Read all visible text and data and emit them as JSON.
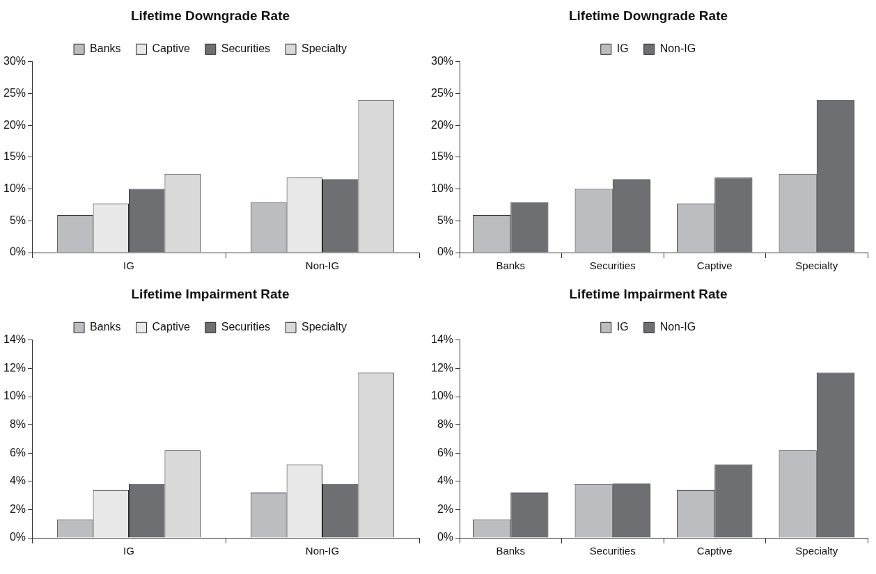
{
  "chart_data": [
    {
      "type": "bar",
      "title": "Lifetime Downgrade Rate",
      "categories": [
        "IG",
        "Non-IG"
      ],
      "legend": "top",
      "ylim": [
        0,
        30
      ],
      "yticks": [
        {
          "value": 0,
          "label": "0%"
        },
        {
          "value": 5,
          "label": "5%"
        },
        {
          "value": 10,
          "label": "10%"
        },
        {
          "value": 15,
          "label": "15%"
        },
        {
          "value": 20,
          "label": "20%"
        },
        {
          "value": 25,
          "label": "25%"
        },
        {
          "value": 30,
          "label": "30%"
        }
      ],
      "series": [
        {
          "name": "Banks",
          "color": "#bcbdc1",
          "values": [
            5.9,
            7.9
          ]
        },
        {
          "name": "Captive",
          "color": "#e8e8e8",
          "values": [
            7.7,
            11.8
          ]
        },
        {
          "name": "Securities",
          "color": "#6e6f73",
          "values": [
            10.0,
            11.5
          ]
        },
        {
          "name": "Specialty",
          "color": "#d9d9d9",
          "values": [
            12.4,
            24.0
          ]
        }
      ]
    },
    {
      "type": "bar",
      "title": "Lifetime Downgrade Rate",
      "categories": [
        "Banks",
        "Securities",
        "Captive",
        "Specialty"
      ],
      "legend": "top",
      "ylim": [
        0,
        30
      ],
      "yticks": [
        {
          "value": 0,
          "label": "0%"
        },
        {
          "value": 5,
          "label": "5%"
        },
        {
          "value": 10,
          "label": "10%"
        },
        {
          "value": 15,
          "label": "15%"
        },
        {
          "value": 20,
          "label": "20%"
        },
        {
          "value": 25,
          "label": "25%"
        },
        {
          "value": 30,
          "label": "30%"
        }
      ],
      "series": [
        {
          "name": "IG",
          "color": "#bcbdc1",
          "values": [
            5.9,
            10.0,
            7.7,
            12.4
          ]
        },
        {
          "name": "Non-IG",
          "color": "#6e6f73",
          "values": [
            7.9,
            11.5,
            11.8,
            24.0
          ]
        }
      ]
    },
    {
      "type": "bar",
      "title": "Lifetime Impairment Rate",
      "categories": [
        "IG",
        "Non-IG"
      ],
      "legend": "top",
      "ylim": [
        0,
        14
      ],
      "yticks": [
        {
          "value": 0,
          "label": "0%"
        },
        {
          "value": 2,
          "label": "2%"
        },
        {
          "value": 4,
          "label": "4%"
        },
        {
          "value": 6,
          "label": "6%"
        },
        {
          "value": 8,
          "label": "8%"
        },
        {
          "value": 10,
          "label": "10%"
        },
        {
          "value": 12,
          "label": "12%"
        },
        {
          "value": 14,
          "label": "14%"
        }
      ],
      "series": [
        {
          "name": "Banks",
          "color": "#bcbdc1",
          "values": [
            1.3,
            3.2
          ]
        },
        {
          "name": "Captive",
          "color": "#e8e8e8",
          "values": [
            3.4,
            5.2
          ]
        },
        {
          "name": "Securities",
          "color": "#6e6f73",
          "values": [
            3.8,
            3.8
          ]
        },
        {
          "name": "Specialty",
          "color": "#d9d9d9",
          "values": [
            6.2,
            11.7
          ]
        }
      ]
    },
    {
      "type": "bar",
      "title": "Lifetime Impairment Rate",
      "categories": [
        "Banks",
        "Securities",
        "Captive",
        "Specialty"
      ],
      "legend": "top",
      "ylim": [
        0,
        14
      ],
      "yticks": [
        {
          "value": 0,
          "label": "0%"
        },
        {
          "value": 2,
          "label": "2%"
        },
        {
          "value": 4,
          "label": "4%"
        },
        {
          "value": 6,
          "label": "6%"
        },
        {
          "value": 8,
          "label": "8%"
        },
        {
          "value": 10,
          "label": "10%"
        },
        {
          "value": 12,
          "label": "12%"
        },
        {
          "value": 14,
          "label": "14%"
        }
      ],
      "series": [
        {
          "name": "IG",
          "color": "#bcbdc1",
          "values": [
            1.3,
            3.8,
            3.4,
            6.2
          ]
        },
        {
          "name": "Non-IG",
          "color": "#6e6f73",
          "values": [
            3.2,
            3.85,
            5.2,
            11.7
          ]
        }
      ]
    }
  ]
}
